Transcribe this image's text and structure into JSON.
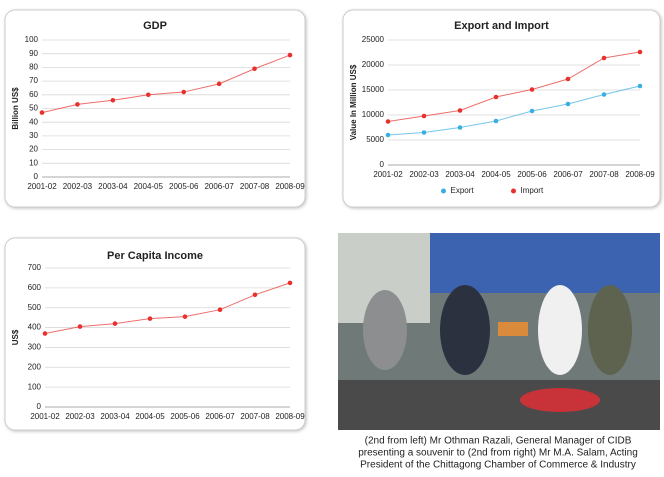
{
  "chart_data": [
    {
      "type": "line",
      "title": "GDP",
      "y_label": "Billion US$",
      "categories": [
        "2001-02",
        "2002-03",
        "2003-04",
        "2004-05",
        "2005-06",
        "2006-07",
        "2007-08",
        "2008-09"
      ],
      "values": [
        47,
        53,
        56,
        60,
        62,
        68,
        79,
        89
      ],
      "color": "#e8302c",
      "ylim": [
        0,
        100
      ],
      "yticks": [
        0,
        10,
        20,
        30,
        40,
        50,
        60,
        70,
        80,
        90,
        100
      ],
      "grid": true
    },
    {
      "type": "line",
      "title": "Export and Import",
      "y_label": "Value In Million US$",
      "categories": [
        "2001-02",
        "2002-03",
        "2003-04",
        "2004-05",
        "2005-06",
        "2006-07",
        "2007-08",
        "2008-09"
      ],
      "series": [
        {
          "name": "Export",
          "color": "#3aaee0",
          "values": [
            6000,
            6500,
            7500,
            8800,
            10800,
            12200,
            14100,
            15800
          ]
        },
        {
          "name": "Import",
          "color": "#e8302c",
          "values": [
            8700,
            9800,
            10900,
            13600,
            15100,
            17200,
            21400,
            22600
          ]
        }
      ],
      "ylim": [
        0,
        25000
      ],
      "yticks": [
        0,
        5000,
        10000,
        15000,
        20000,
        25000
      ],
      "grid": true,
      "legend": "bottom"
    },
    {
      "type": "line",
      "title": "Per Capita Income",
      "y_label": "US$",
      "categories": [
        "2001-02",
        "2002-03",
        "2003-04",
        "2004-05",
        "2005-06",
        "2006-07",
        "2007-08",
        "2008-09"
      ],
      "values": [
        370,
        405,
        420,
        445,
        455,
        490,
        565,
        625
      ],
      "color": "#e8302c",
      "ylim": [
        0,
        700
      ],
      "yticks": [
        0,
        100,
        200,
        300,
        400,
        500,
        600,
        700
      ],
      "grid": true
    }
  ],
  "caption": [
    "(2nd from left) Mr Othman Razali, General Manager of CIDB",
    "presenting a souvenir to (2nd from right) Mr M.A. Salam, Acting",
    "President of the Chittagong Chamber of Commerce & Industry"
  ]
}
